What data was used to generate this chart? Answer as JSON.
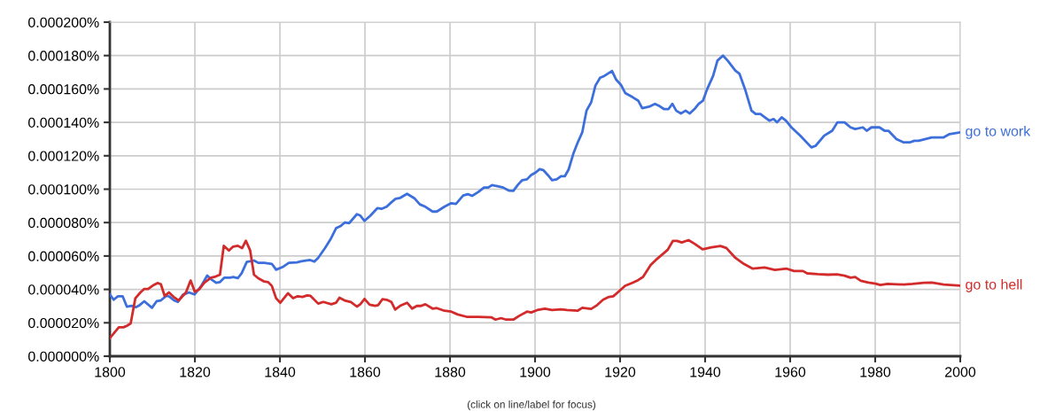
{
  "chart_data": {
    "type": "line",
    "xlim": [
      1800,
      2000
    ],
    "xticks": [
      1800,
      1820,
      1840,
      1860,
      1880,
      1900,
      1920,
      1940,
      1960,
      1980,
      2000
    ],
    "ylim": [
      0,
      0.0002
    ],
    "yticks": [
      {
        "value": 0,
        "label": "0.000000%"
      },
      {
        "value": 2e-05,
        "label": "0.000020%"
      },
      {
        "value": 4e-05,
        "label": "0.000040%"
      },
      {
        "value": 6e-05,
        "label": "0.000060%"
      },
      {
        "value": 8e-05,
        "label": "0.000080%"
      },
      {
        "value": 0.0001,
        "label": "0.000100%"
      },
      {
        "value": 0.00012,
        "label": "0.000120%"
      },
      {
        "value": 0.00014,
        "label": "0.000140%"
      },
      {
        "value": 0.00016,
        "label": "0.000160%"
      },
      {
        "value": 0.00018,
        "label": "0.000180%"
      },
      {
        "value": 0.0002,
        "label": "0.000200%"
      }
    ],
    "grid": true,
    "marker": "none",
    "line_style": "solid",
    "annotations": [
      "(click on line/label for focus)"
    ],
    "series": [
      {
        "name": "go to work",
        "color": "#3c6fdc",
        "x": [
          1800,
          1800.9,
          1801.9,
          1803,
          1804,
          1805.1,
          1806.1,
          1806.8,
          1808.1,
          1809.9,
          1811,
          1812,
          1813.4,
          1814.1,
          1815.1,
          1816,
          1817.2,
          1818.6,
          1819.9,
          1821.4,
          1822.9,
          1823.8,
          1825,
          1825.9,
          1826.9,
          1828.3,
          1829,
          1830.1,
          1831,
          1832.2,
          1833.9,
          1834.9,
          1836.3,
          1838.1,
          1839.1,
          1840.8,
          1842.1,
          1844,
          1845,
          1847.1,
          1848.1,
          1849,
          1850.6,
          1851.9,
          1853.2,
          1854.2,
          1855.3,
          1856.3,
          1858.1,
          1858.9,
          1859.9,
          1861.3,
          1862.9,
          1863.9,
          1865.1,
          1866.2,
          1867.2,
          1868.3,
          1869.9,
          1871.7,
          1872.9,
          1874.2,
          1875.9,
          1876.9,
          1878.7,
          1880.3,
          1881.4,
          1883.1,
          1884.2,
          1885.2,
          1886.6,
          1888,
          1889,
          1889.9,
          1890.7,
          1892.5,
          1893.9,
          1894.9,
          1896,
          1897,
          1898.1,
          1899.1,
          1900.2,
          1901.1,
          1902,
          1903,
          1904,
          1905.1,
          1906.1,
          1907,
          1907.9,
          1909,
          1910,
          1911.1,
          1912.1,
          1913.2,
          1914.2,
          1915.3,
          1916.3,
          1918.1,
          1919.1,
          1920.2,
          1921.2,
          1923,
          1924.3,
          1925.2,
          1926.8,
          1928.2,
          1929.3,
          1930.3,
          1931.4,
          1932.3,
          1933.2,
          1934.3,
          1935.4,
          1936.4,
          1937.5,
          1938.5,
          1939.5,
          1940.5,
          1941.9,
          1942.9,
          1944.2,
          1945.3,
          1947.1,
          1948.1,
          1949.5,
          1950.9,
          1951.9,
          1953,
          1955.1,
          1956.1,
          1956.9,
          1958,
          1959,
          1960.3,
          1962.4,
          1965,
          1966,
          1968,
          1969.9,
          1971.1,
          1972.8,
          1974.2,
          1975.3,
          1977.1,
          1978,
          1979.1,
          1981,
          1982.2,
          1983.1,
          1985,
          1986.7,
          1988.1,
          1989.2,
          1990.2,
          1993.3,
          1996.1,
          1997.5,
          2000
        ],
        "values": [
          3.69e-05,
          3.38e-05,
          3.59e-05,
          3.59e-05,
          2.97e-05,
          3.02e-05,
          2.93e-05,
          3.02e-05,
          3.29e-05,
          2.9e-05,
          3.29e-05,
          3.34e-05,
          3.64e-05,
          3.55e-05,
          3.34e-05,
          3.25e-05,
          3.68e-05,
          3.82e-05,
          3.7e-05,
          4.17e-05,
          4.83e-05,
          4.61e-05,
          4.4e-05,
          4.44e-05,
          4.7e-05,
          4.7e-05,
          4.74e-05,
          4.67e-05,
          4.97e-05,
          5.64e-05,
          5.73e-05,
          5.59e-05,
          5.59e-05,
          5.53e-05,
          5.18e-05,
          5.36e-05,
          5.59e-05,
          5.62e-05,
          5.68e-05,
          5.76e-05,
          5.66e-05,
          5.89e-05,
          6.47e-05,
          7e-05,
          7.66e-05,
          7.78e-05,
          8.01e-05,
          7.97e-05,
          8.5e-05,
          8.42e-05,
          8.1e-05,
          8.42e-05,
          8.86e-05,
          8.82e-05,
          8.95e-05,
          9.21e-05,
          9.42e-05,
          9.48e-05,
          9.72e-05,
          9.44e-05,
          9.09e-05,
          8.95e-05,
          8.66e-05,
          8.66e-05,
          8.95e-05,
          9.16e-05,
          9.12e-05,
          9.62e-05,
          9.7e-05,
          9.6e-05,
          9.82e-05,
          0.000101,
          0.000101,
          0.0001025,
          0.000102,
          0.000101,
          9.91e-05,
          9.9e-05,
          0.0001027,
          0.0001054,
          0.0001059,
          0.0001085,
          0.0001101,
          0.000112,
          0.0001113,
          0.0001085,
          0.0001054,
          0.0001059,
          0.0001077,
          0.0001077,
          0.0001118,
          0.0001212,
          0.0001277,
          0.000134,
          0.000147,
          0.000152,
          0.000162,
          0.0001667,
          0.0001678,
          0.0001708,
          0.0001655,
          0.0001625,
          0.0001576,
          0.000155,
          0.0001529,
          0.0001485,
          0.0001494,
          0.0001511,
          0.0001497,
          0.000148,
          0.000148,
          0.0001511,
          0.000147,
          0.0001453,
          0.000147,
          0.0001453,
          0.000148,
          0.0001511,
          0.000153,
          0.00016,
          0.000168,
          0.000177,
          0.00018,
          0.000177,
          0.000171,
          0.000169,
          0.000159,
          0.000147,
          0.000145,
          0.000145,
          0.000141,
          0.000142,
          0.00014,
          0.000143,
          0.000141,
          0.000137,
          0.000132,
          0.000125,
          0.000126,
          0.000132,
          0.000135,
          0.00014,
          0.00014,
          0.000137,
          0.000136,
          0.000137,
          0.000135,
          0.000137,
          0.000137,
          0.000135,
          0.000135,
          0.00013,
          0.000128,
          0.000128,
          0.000129,
          0.000129,
          0.000131,
          0.000131,
          0.000133,
          0.000134
        ]
      },
      {
        "name": "go to hell",
        "color": "#d32b2b",
        "x": [
          1800,
          1802.1,
          1803.2,
          1804,
          1804.9,
          1806,
          1807.2,
          1808.1,
          1809,
          1810.3,
          1811.2,
          1812,
          1812.9,
          1813.9,
          1815,
          1816.2,
          1817.9,
          1819,
          1820,
          1821,
          1822.2,
          1823.8,
          1824.9,
          1825.9,
          1826.8,
          1828,
          1829,
          1830.1,
          1831.1,
          1832,
          1833,
          1833.9,
          1834.9,
          1836.3,
          1837.2,
          1838.1,
          1839.1,
          1840.1,
          1841.9,
          1843.1,
          1844.2,
          1845.3,
          1846.4,
          1847.2,
          1849,
          1850.2,
          1852.1,
          1853.2,
          1854,
          1855.4,
          1856.7,
          1858.1,
          1858.9,
          1859.9,
          1861.1,
          1862.4,
          1863.1,
          1864.1,
          1865.1,
          1866.2,
          1867.1,
          1868.3,
          1869.9,
          1871.1,
          1872.2,
          1873.2,
          1874.2,
          1875.9,
          1876.9,
          1878.7,
          1880.3,
          1881.8,
          1883.9,
          1886.6,
          1889.7,
          1890.7,
          1892,
          1893.2,
          1894.9,
          1896.3,
          1898.1,
          1899.1,
          1900.5,
          1902.3,
          1904,
          1906.1,
          1907.5,
          1910,
          1911.1,
          1913.2,
          1914.6,
          1916,
          1917.4,
          1918.4,
          1919.8,
          1921.2,
          1923,
          1924,
          1925.4,
          1927.2,
          1928.4,
          1930,
          1931.2,
          1932.4,
          1933.4,
          1934.5,
          1936.1,
          1937.6,
          1939.4,
          1941.5,
          1943.6,
          1945,
          1947.1,
          1949.1,
          1951.2,
          1954,
          1956.4,
          1959.2,
          1960.9,
          1963,
          1964,
          1966.5,
          1968.9,
          1971,
          1972.8,
          1974.2,
          1975.3,
          1976.6,
          1978.4,
          1980.1,
          1981.2,
          1982.9,
          1986.7,
          1988.8,
          1991.5,
          1993.3,
          1996.1,
          2000
        ],
        "values": [
          1.08e-05,
          1.73e-05,
          1.73e-05,
          1.82e-05,
          1.96e-05,
          3.47e-05,
          3.82e-05,
          4.03e-05,
          4.03e-05,
          4.26e-05,
          4.38e-05,
          4.31e-05,
          3.61e-05,
          3.82e-05,
          3.55e-05,
          3.34e-05,
          3.82e-05,
          4.53e-05,
          3.85e-05,
          4e-05,
          4.4e-05,
          4.7e-05,
          4.77e-05,
          4.88e-05,
          6.61e-05,
          6.33e-05,
          6.56e-05,
          6.61e-05,
          6.47e-05,
          6.91e-05,
          6.33e-05,
          4.88e-05,
          4.67e-05,
          4.47e-05,
          4.44e-05,
          4.21e-05,
          3.47e-05,
          3.2e-05,
          3.77e-05,
          3.47e-05,
          3.59e-05,
          3.55e-05,
          3.64e-05,
          3.61e-05,
          3.15e-05,
          3.25e-05,
          3.11e-05,
          3.2e-05,
          3.5e-05,
          3.32e-05,
          3.24e-05,
          2.97e-05,
          3.11e-05,
          3.43e-05,
          3.08e-05,
          3.02e-05,
          3.06e-05,
          3.41e-05,
          3.38e-05,
          3.25e-05,
          2.79e-05,
          3.02e-05,
          3.2e-05,
          2.85e-05,
          3.01e-05,
          3.01e-05,
          3.11e-05,
          2.85e-05,
          2.88e-05,
          2.72e-05,
          2.67e-05,
          2.5e-05,
          2.36e-05,
          2.36e-05,
          2.33e-05,
          2.19e-05,
          2.28e-05,
          2.19e-05,
          2.19e-05,
          2.42e-05,
          2.67e-05,
          2.62e-05,
          2.76e-05,
          2.85e-05,
          2.76e-05,
          2.8e-05,
          2.76e-05,
          2.72e-05,
          2.9e-05,
          2.83e-05,
          3.06e-05,
          3.38e-05,
          3.55e-05,
          3.59e-05,
          3.9e-05,
          4.22e-05,
          4.4e-05,
          4.52e-05,
          4.75e-05,
          5.46e-05,
          5.76e-05,
          6.11e-05,
          6.37e-05,
          6.9e-05,
          6.9e-05,
          6.81e-05,
          6.95e-05,
          6.72e-05,
          6.4e-05,
          6.52e-05,
          6.6e-05,
          6.48e-05,
          5.89e-05,
          5.53e-05,
          5.24e-05,
          5.31e-05,
          5.17e-05,
          5.24e-05,
          5.1e-05,
          5.1e-05,
          4.96e-05,
          4.91e-05,
          4.88e-05,
          4.9e-05,
          4.82e-05,
          4.7e-05,
          4.74e-05,
          4.52e-05,
          4.41e-05,
          4.34e-05,
          4.26e-05,
          4.33e-05,
          4.29e-05,
          4.33e-05,
          4.4e-05,
          4.41e-05,
          4.29e-05,
          4.22e-05
        ]
      }
    ]
  }
}
